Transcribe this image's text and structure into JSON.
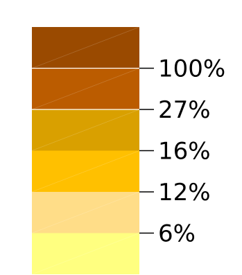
{
  "chart_data": {
    "type": "heatmap",
    "title": "",
    "colors": [
      "#9A4A00",
      "#BB5C00",
      "#D9A000",
      "#FFC000",
      "#FFDD88",
      "#FFFF80"
    ],
    "tick_labels": [
      "100%",
      "27%",
      "16%",
      "12%",
      "6%"
    ]
  }
}
